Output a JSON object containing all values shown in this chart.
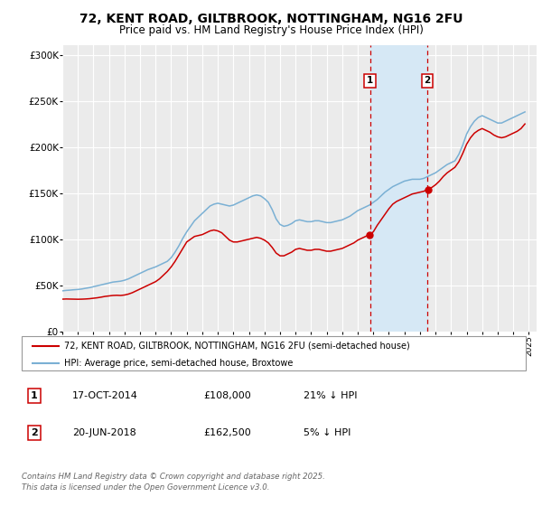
{
  "title": "72, KENT ROAD, GILTBROOK, NOTTINGHAM, NG16 2FU",
  "subtitle": "Price paid vs. HM Land Registry's House Price Index (HPI)",
  "title_fontsize": 10,
  "subtitle_fontsize": 8.5,
  "ylim": [
    0,
    310000
  ],
  "yticks": [
    0,
    50000,
    100000,
    150000,
    200000,
    250000,
    300000
  ],
  "ytick_labels": [
    "£0",
    "£50K",
    "£100K",
    "£150K",
    "£200K",
    "£250K",
    "£300K"
  ],
  "background_color": "#ffffff",
  "plot_bg_color": "#ebebeb",
  "grid_color": "#ffffff",
  "red_color": "#cc0000",
  "blue_color": "#7ab0d4",
  "sale1_date": 2014.79,
  "sale1_price": 108000,
  "sale1_label": "1",
  "sale2_date": 2018.47,
  "sale2_price": 162500,
  "sale2_label": "2",
  "shaded_region_color": "#d6e8f5",
  "legend_label_red": "72, KENT ROAD, GILTBROOK, NOTTINGHAM, NG16 2FU (semi-detached house)",
  "legend_label_blue": "HPI: Average price, semi-detached house, Broxtowe",
  "table_row1": [
    "1",
    "17-OCT-2014",
    "£108,000",
    "21% ↓ HPI"
  ],
  "table_row2": [
    "2",
    "20-JUN-2018",
    "£162,500",
    "5% ↓ HPI"
  ],
  "footnote": "Contains HM Land Registry data © Crown copyright and database right 2025.\nThis data is licensed under the Open Government Licence v3.0.",
  "hpi_years": [
    1995.0,
    1995.25,
    1995.5,
    1995.75,
    1996.0,
    1996.25,
    1996.5,
    1996.75,
    1997.0,
    1997.25,
    1997.5,
    1997.75,
    1998.0,
    1998.25,
    1998.5,
    1998.75,
    1999.0,
    1999.25,
    1999.5,
    1999.75,
    2000.0,
    2000.25,
    2000.5,
    2000.75,
    2001.0,
    2001.25,
    2001.5,
    2001.75,
    2002.0,
    2002.25,
    2002.5,
    2002.75,
    2003.0,
    2003.25,
    2003.5,
    2003.75,
    2004.0,
    2004.25,
    2004.5,
    2004.75,
    2005.0,
    2005.25,
    2005.5,
    2005.75,
    2006.0,
    2006.25,
    2006.5,
    2006.75,
    2007.0,
    2007.25,
    2007.5,
    2007.75,
    2008.0,
    2008.25,
    2008.5,
    2008.75,
    2009.0,
    2009.25,
    2009.5,
    2009.75,
    2010.0,
    2010.25,
    2010.5,
    2010.75,
    2011.0,
    2011.25,
    2011.5,
    2011.75,
    2012.0,
    2012.25,
    2012.5,
    2012.75,
    2013.0,
    2013.25,
    2013.5,
    2013.75,
    2014.0,
    2014.25,
    2014.5,
    2014.75,
    2015.0,
    2015.25,
    2015.5,
    2015.75,
    2016.0,
    2016.25,
    2016.5,
    2016.75,
    2017.0,
    2017.25,
    2017.5,
    2017.75,
    2018.0,
    2018.25,
    2018.5,
    2018.75,
    2019.0,
    2019.25,
    2019.5,
    2019.75,
    2020.0,
    2020.25,
    2020.5,
    2020.75,
    2021.0,
    2021.25,
    2021.5,
    2021.75,
    2022.0,
    2022.25,
    2022.5,
    2022.75,
    2023.0,
    2023.25,
    2023.5,
    2023.75,
    2024.0,
    2024.25,
    2024.5,
    2024.75
  ],
  "hpi_values": [
    44000,
    44500,
    44800,
    45200,
    45500,
    46000,
    46800,
    47500,
    48500,
    49500,
    50500,
    51500,
    52500,
    53500,
    54000,
    54500,
    55500,
    57000,
    59000,
    61000,
    63000,
    65000,
    67000,
    68500,
    70000,
    72000,
    74000,
    76000,
    80000,
    86000,
    93000,
    101000,
    108000,
    114000,
    120000,
    124000,
    128000,
    132000,
    136000,
    138000,
    139000,
    138000,
    137000,
    136000,
    137000,
    139000,
    141000,
    143000,
    145000,
    147000,
    148000,
    147000,
    144000,
    140000,
    132000,
    122000,
    116000,
    114000,
    115000,
    117000,
    120000,
    121000,
    120000,
    119000,
    119000,
    120000,
    120000,
    119000,
    118000,
    118000,
    119000,
    120000,
    121000,
    123000,
    125000,
    128000,
    131000,
    133000,
    135000,
    137000,
    140000,
    143000,
    147000,
    151000,
    154000,
    157000,
    159000,
    161000,
    163000,
    164000,
    165000,
    165000,
    165000,
    166000,
    168000,
    170000,
    172000,
    175000,
    178000,
    181000,
    183000,
    185000,
    192000,
    202000,
    214000,
    222000,
    228000,
    232000,
    234000,
    232000,
    230000,
    228000,
    226000,
    226000,
    228000,
    230000,
    232000,
    234000,
    236000,
    238000
  ],
  "price_years": [
    1995.0,
    1995.25,
    1995.5,
    1995.75,
    1996.0,
    1996.25,
    1996.5,
    1996.75,
    1997.0,
    1997.25,
    1997.5,
    1997.75,
    1998.0,
    1998.25,
    1998.5,
    1998.75,
    1999.0,
    1999.25,
    1999.5,
    1999.75,
    2000.0,
    2000.25,
    2000.5,
    2000.75,
    2001.0,
    2001.25,
    2001.5,
    2001.75,
    2002.0,
    2002.25,
    2002.5,
    2002.75,
    2003.0,
    2003.25,
    2003.5,
    2003.75,
    2004.0,
    2004.25,
    2004.5,
    2004.75,
    2005.0,
    2005.25,
    2005.5,
    2005.75,
    2006.0,
    2006.25,
    2006.5,
    2006.75,
    2007.0,
    2007.25,
    2007.5,
    2007.75,
    2008.0,
    2008.25,
    2008.5,
    2008.75,
    2009.0,
    2009.25,
    2009.5,
    2009.75,
    2010.0,
    2010.25,
    2010.5,
    2010.75,
    2011.0,
    2011.25,
    2011.5,
    2011.75,
    2012.0,
    2012.25,
    2012.5,
    2012.75,
    2013.0,
    2013.25,
    2013.5,
    2013.75,
    2014.0,
    2014.25,
    2014.5,
    2014.75,
    2015.0,
    2015.25,
    2015.5,
    2015.75,
    2016.0,
    2016.25,
    2016.5,
    2016.75,
    2017.0,
    2017.25,
    2017.5,
    2017.75,
    2018.0,
    2018.25,
    2018.5,
    2018.75,
    2019.0,
    2019.25,
    2019.5,
    2019.75,
    2020.0,
    2020.25,
    2020.5,
    2020.75,
    2021.0,
    2021.25,
    2021.5,
    2021.75,
    2022.0,
    2022.25,
    2022.5,
    2022.75,
    2023.0,
    2023.25,
    2023.5,
    2023.75,
    2024.0,
    2024.25,
    2024.5,
    2024.75
  ],
  "price_values": [
    35000,
    35200,
    35100,
    35000,
    34900,
    35000,
    35200,
    35500,
    36000,
    36500,
    37200,
    38000,
    38500,
    39000,
    39200,
    39000,
    39500,
    40500,
    42000,
    44000,
    46000,
    48000,
    50000,
    52000,
    54000,
    57000,
    61000,
    65000,
    70000,
    76000,
    83000,
    90000,
    97000,
    100000,
    103000,
    104000,
    105000,
    107000,
    109000,
    110000,
    109000,
    107000,
    103000,
    99000,
    97000,
    97000,
    98000,
    99000,
    100000,
    101000,
    102000,
    101000,
    99000,
    96000,
    91000,
    85000,
    82000,
    82000,
    84000,
    86000,
    89000,
    90000,
    89000,
    88000,
    88000,
    89000,
    89000,
    88000,
    87000,
    87000,
    88000,
    89000,
    90000,
    92000,
    94000,
    96000,
    99000,
    101000,
    103000,
    105000,
    108000,
    115000,
    121000,
    127000,
    133000,
    138000,
    141000,
    143000,
    145000,
    147000,
    149000,
    150000,
    151000,
    152000,
    154000,
    156000,
    159000,
    163000,
    168000,
    172000,
    175000,
    178000,
    184000,
    193000,
    203000,
    210000,
    215000,
    218000,
    220000,
    218000,
    216000,
    213000,
    211000,
    210000,
    211000,
    213000,
    215000,
    217000,
    220000,
    225000
  ]
}
